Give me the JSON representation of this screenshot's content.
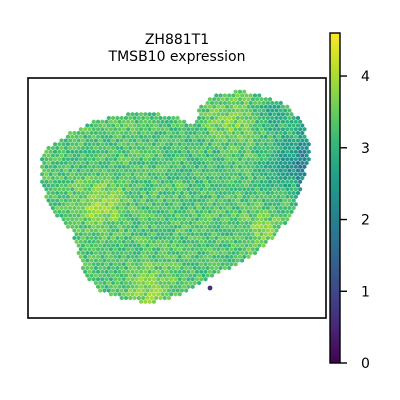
{
  "chart_data": {
    "type": "heatmap",
    "subtype": "spatial spot expression map",
    "title_lines": [
      "ZH881T1",
      "TMSB10 expression"
    ],
    "colormap": "viridis",
    "colorbar": {
      "range": [
        0,
        4.6
      ],
      "ticks": [
        0,
        1,
        2,
        3,
        4
      ],
      "tick_labels": [
        "0",
        "1",
        "2",
        "3",
        "4"
      ]
    },
    "expression_summary": {
      "typical_range": [
        2.0,
        4.5
      ],
      "dominant_range": [
        2.8,
        3.8
      ],
      "minimum_observed": 0.6
    },
    "colors": {
      "viridis": [
        "#440154",
        "#482878",
        "#3e4989",
        "#31688e",
        "#26828e",
        "#1f9e89",
        "#35b779",
        "#6ece58",
        "#b5de2b",
        "#fde725"
      ]
    },
    "grid": false,
    "legend": "colorbar-right"
  }
}
